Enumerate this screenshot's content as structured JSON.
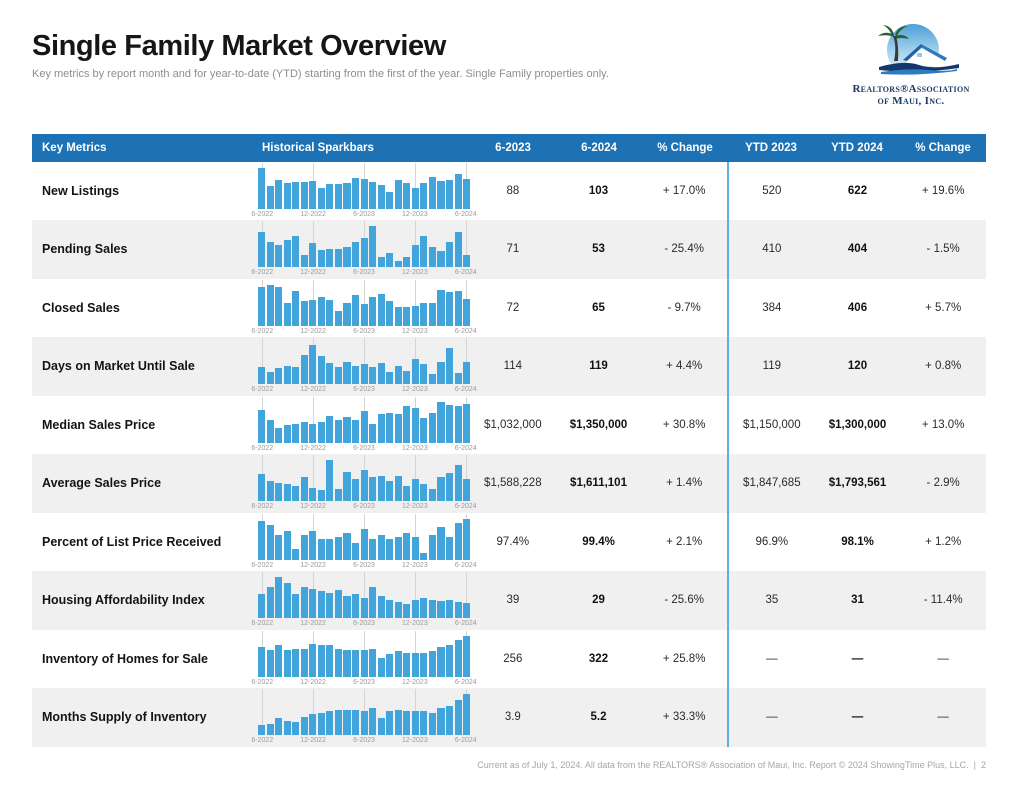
{
  "header": {
    "title": "Single Family Market Overview",
    "subtitle": "Key metrics by report month and for year-to-date (YTD) starting from the first of the year. Single Family properties only."
  },
  "logo": {
    "line1": "Realtors®Association",
    "line2": "of Maui, Inc."
  },
  "colors": {
    "header_blue": "#1d72b5",
    "bar_blue": "#41a5dc",
    "divider_blue": "#5fb0de",
    "alt_row_gray": "#f0f0f0"
  },
  "table": {
    "headers": [
      "Key Metrics",
      "Historical Sparkbars",
      "6-2023",
      "6-2024",
      "% Change",
      "YTD 2023",
      "YTD 2024",
      "% Change"
    ],
    "axis_labels": [
      "6-2022",
      "12-2022",
      "6-2023",
      "12-2023",
      "6-2024"
    ],
    "rows": [
      {
        "metric": "New Listings",
        "values": [
          "88",
          "103",
          "+ 17.0%",
          "520",
          "622",
          "+ 19.6%"
        ],
        "spark": [
          100,
          55,
          70,
          62,
          65,
          65,
          68,
          50,
          60,
          60,
          62,
          75,
          72,
          64,
          58,
          40,
          70,
          62,
          50,
          62,
          78,
          68,
          70,
          85,
          72
        ]
      },
      {
        "metric": "Pending Sales",
        "values": [
          "71",
          "53",
          "- 25.4%",
          "410",
          "404",
          "- 1.5%"
        ],
        "spark": [
          85,
          62,
          55,
          65,
          75,
          30,
          58,
          42,
          45,
          45,
          48,
          62,
          72,
          100,
          25,
          35,
          15,
          25,
          55,
          75,
          50,
          40,
          62,
          85,
          30
        ]
      },
      {
        "metric": "Closed Sales",
        "values": [
          "72",
          "65",
          "- 9.7%",
          "384",
          "406",
          "+ 5.7%"
        ],
        "spark": [
          95,
          100,
          95,
          55,
          85,
          60,
          62,
          70,
          62,
          35,
          55,
          75,
          52,
          70,
          78,
          60,
          45,
          45,
          48,
          55,
          55,
          88,
          82,
          85,
          65
        ]
      },
      {
        "metric": "Days on Market Until Sale",
        "values": [
          "114",
          "119",
          "+ 4.4%",
          "119",
          "120",
          "+ 0.8%"
        ],
        "spark": [
          42,
          30,
          40,
          45,
          42,
          72,
          95,
          68,
          52,
          42,
          55,
          45,
          48,
          42,
          52,
          30,
          45,
          32,
          62,
          48,
          25,
          55,
          88,
          28,
          55
        ]
      },
      {
        "metric": "Median Sales Price",
        "values": [
          "$1,032,000",
          "$1,350,000",
          "+ 30.8%",
          "$1,150,000",
          "$1,300,000",
          "+ 13.0%"
        ],
        "spark": [
          80,
          55,
          35,
          42,
          45,
          50,
          45,
          50,
          65,
          55,
          62,
          55,
          78,
          45,
          70,
          72,
          70,
          90,
          85,
          60,
          72,
          100,
          92,
          90,
          95
        ]
      },
      {
        "metric": "Average Sales Price",
        "values": [
          "$1,588,228",
          "$1,611,101",
          "+ 1.4%",
          "$1,847,685",
          "$1,793,561",
          "- 2.9%"
        ],
        "spark": [
          65,
          50,
          45,
          42,
          38,
          60,
          32,
          28,
          100,
          30,
          72,
          55,
          75,
          60,
          62,
          48,
          62,
          38,
          55,
          42,
          30,
          58,
          68,
          88,
          55
        ]
      },
      {
        "metric": "Percent of List Price Received",
        "values": [
          "97.4%",
          "99.4%",
          "+ 2.1%",
          "96.9%",
          "98.1%",
          "+ 1.2%"
        ],
        "spark": [
          95,
          85,
          60,
          70,
          25,
          60,
          70,
          50,
          50,
          55,
          65,
          40,
          75,
          50,
          60,
          50,
          55,
          65,
          55,
          15,
          60,
          80,
          55,
          90,
          100
        ]
      },
      {
        "metric": "Housing Affordability Index",
        "values": [
          "39",
          "29",
          "- 25.6%",
          "35",
          "31",
          "- 11.4%"
        ],
        "spark": [
          60,
          75,
          100,
          85,
          60,
          75,
          70,
          65,
          62,
          68,
          55,
          60,
          50,
          75,
          55,
          45,
          40,
          35,
          45,
          50,
          45,
          42,
          45,
          40,
          38
        ]
      },
      {
        "metric": "Inventory of Homes for Sale",
        "values": [
          "256",
          "322",
          "+ 25.8%",
          "—",
          "—",
          "—"
        ],
        "spark": [
          72,
          65,
          78,
          65,
          68,
          68,
          80,
          78,
          78,
          68,
          65,
          65,
          65,
          68,
          45,
          55,
          62,
          58,
          58,
          58,
          62,
          72,
          78,
          90,
          100
        ]
      },
      {
        "metric": "Months Supply of Inventory",
        "values": [
          "3.9",
          "5.2",
          "+ 33.3%",
          "—",
          "—",
          "—"
        ],
        "spark": [
          25,
          28,
          42,
          35,
          32,
          45,
          52,
          55,
          58,
          62,
          62,
          62,
          58,
          65,
          42,
          58,
          62,
          60,
          60,
          58,
          55,
          65,
          72,
          85,
          100
        ]
      }
    ]
  },
  "footer": {
    "text": "Current as of July 1, 2024. All data from the REALTORS® Association of Maui, Inc. Report © 2024 ShowingTime Plus, LLC.",
    "divider": "|",
    "page_number": "2"
  }
}
